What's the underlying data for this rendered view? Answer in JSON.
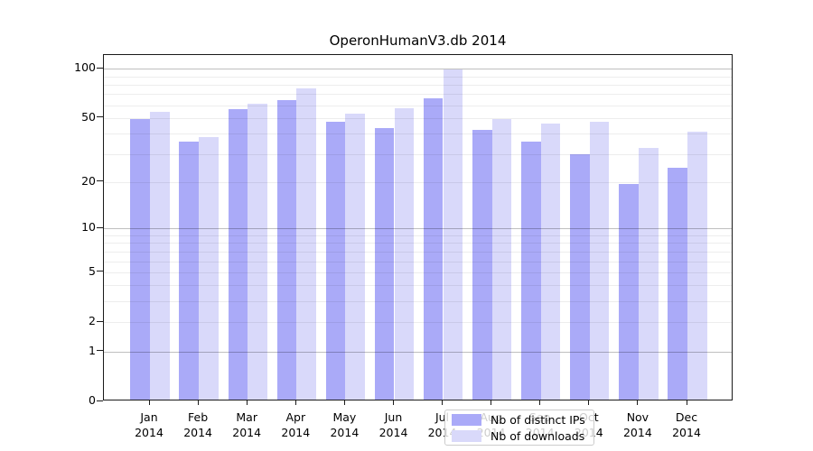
{
  "title": "OperonHumanV3.db 2014",
  "chart_data": {
    "type": "bar",
    "title": "OperonHumanV3.db 2014",
    "categories": [
      {
        "month": "Jan",
        "year": "2014"
      },
      {
        "month": "Feb",
        "year": "2014"
      },
      {
        "month": "Mar",
        "year": "2014"
      },
      {
        "month": "Apr",
        "year": "2014"
      },
      {
        "month": "May",
        "year": "2014"
      },
      {
        "month": "Jun",
        "year": "2014"
      },
      {
        "month": "Jul",
        "year": "2014"
      },
      {
        "month": "Aug",
        "year": "2014"
      },
      {
        "month": "Sep",
        "year": "2014"
      },
      {
        "month": "Oct",
        "year": "2014"
      },
      {
        "month": "Nov",
        "year": "2014"
      },
      {
        "month": "Dec",
        "year": "2014"
      }
    ],
    "series": [
      {
        "name": "Nb of distinct IPs",
        "color": "#aaaaf8",
        "values": [
          48,
          35,
          55,
          63,
          46,
          42,
          64,
          41,
          35,
          29,
          19,
          24
        ]
      },
      {
        "name": "Nb of downloads",
        "color": "#d9d9fa",
        "values": [
          53,
          37,
          60,
          74,
          52,
          56,
          97,
          48,
          45,
          46,
          32,
          40
        ]
      }
    ],
    "yscale": "log1p",
    "ylim": [
      0,
      115
    ],
    "yticks": [
      0,
      1,
      2,
      5,
      10,
      20,
      50,
      100
    ],
    "grid": {
      "major": [
        1,
        10,
        100
      ],
      "minor": [
        2,
        3,
        4,
        5,
        6,
        7,
        8,
        9,
        20,
        30,
        40,
        50,
        60,
        70,
        80,
        90
      ]
    },
    "legend": {
      "position": "lower-center"
    }
  }
}
